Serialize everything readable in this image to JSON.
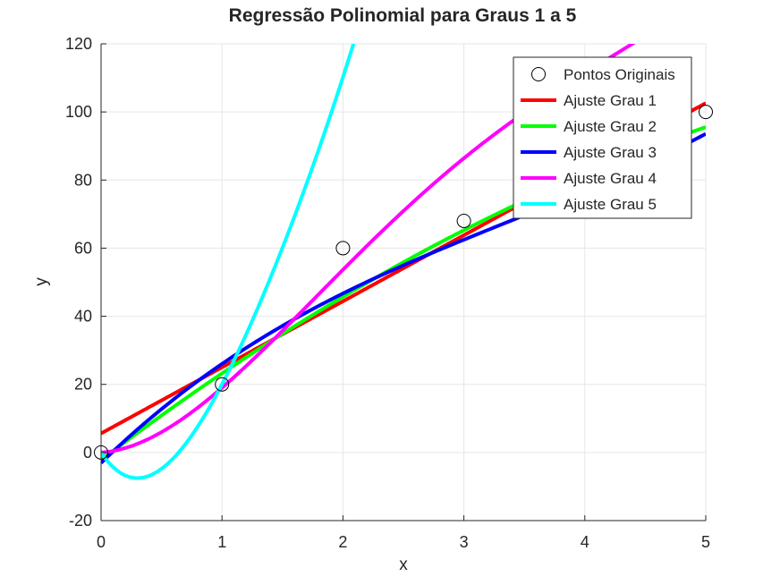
{
  "chart_data": {
    "type": "line",
    "title": "Regressão Polinomial para Graus 1 a 5",
    "xlabel": "x",
    "ylabel": "y",
    "xlim": [
      0,
      5
    ],
    "ylim": [
      -20,
      120
    ],
    "xticks": [
      0,
      1,
      2,
      3,
      4,
      5
    ],
    "yticks": [
      -20,
      0,
      20,
      40,
      60,
      80,
      100,
      120
    ],
    "grid": true,
    "legend_position": "top-right",
    "points": {
      "name": "Pontos Originais",
      "x": [
        0,
        1,
        2,
        3,
        5
      ],
      "y": [
        0,
        20,
        60,
        68,
        100
      ]
    },
    "series": [
      {
        "name": "Ajuste Grau 1",
        "color": "#ff0000",
        "coefficients": [
          5.6,
          19.4
        ]
      },
      {
        "name": "Ajuste Grau 2",
        "color": "#00ff00",
        "coefficients": [
          -2.2,
          26.9,
          -1.47
        ]
      },
      {
        "name": "Ajuste Grau 3",
        "color": "#0000ff",
        "coefficients": [
          -3.07,
          34.48,
          -5.98,
          0.59
        ]
      },
      {
        "name": "Ajuste Grau 4",
        "color": "#ff00ff",
        "coefficients": [
          0,
          2.37,
          22.01,
          -5.87,
          0.49
        ]
      },
      {
        "name": "Ajuste Grau 5",
        "color": "#00ffff",
        "coefficients": [
          0,
          -53.24,
          104.79,
          -38.21,
          6.87,
          -0.21
        ]
      }
    ]
  }
}
